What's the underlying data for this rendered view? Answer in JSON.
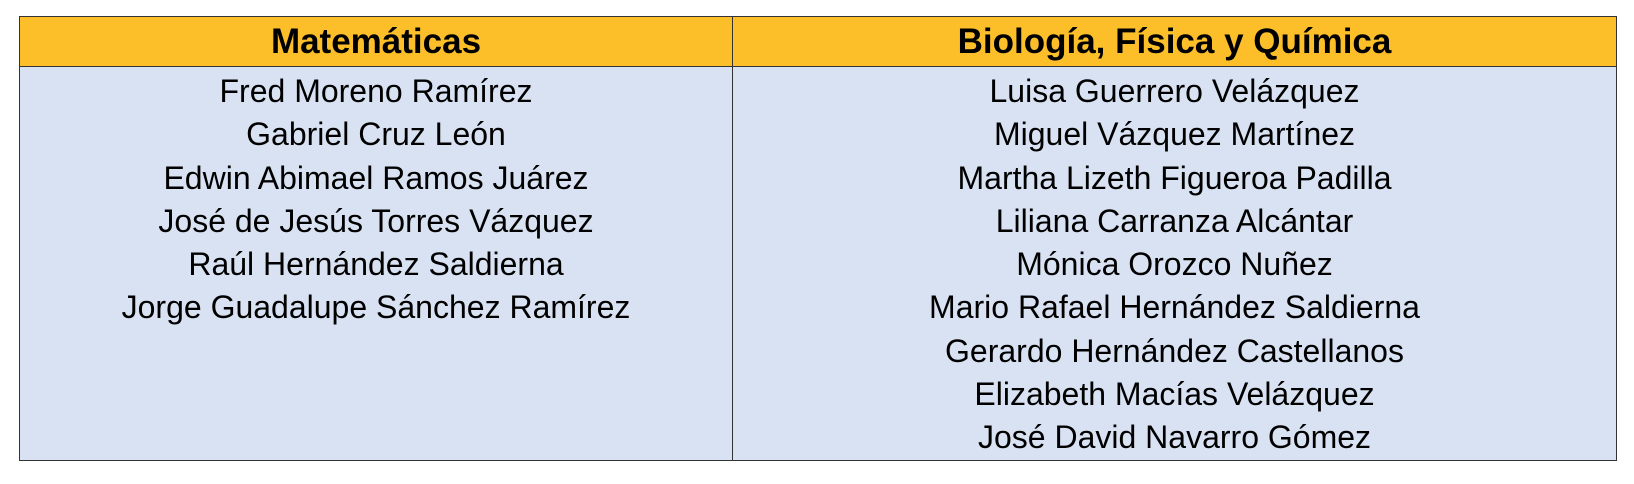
{
  "columns": [
    {
      "header": "Matemáticas",
      "names": [
        "Fred Moreno Ramírez",
        "Gabriel Cruz León",
        "Edwin Abimael Ramos Juárez",
        "José de Jesús Torres Vázquez",
        "Raúl Hernández Saldierna",
        "Jorge Guadalupe Sánchez Ramírez"
      ]
    },
    {
      "header": "Biología, Física y Química",
      "names": [
        "Luisa Guerrero Velázquez",
        "Miguel Vázquez Martínez",
        "Martha Lizeth Figueroa Padilla",
        "Liliana Carranza Alcántar",
        "Mónica Orozco Nuñez",
        "Mario Rafael Hernández Saldierna",
        "Gerardo Hernández Castellanos",
        "Elizabeth Macías Velázquez",
        "José David Navarro Gómez"
      ]
    }
  ],
  "colors": {
    "header": "#fcbf29",
    "body": "#d9e2f2"
  }
}
